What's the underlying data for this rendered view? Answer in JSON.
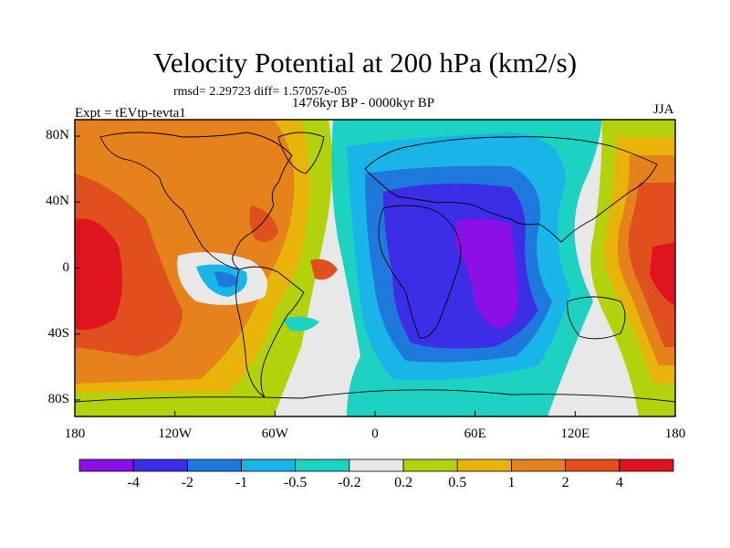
{
  "title": "Velocity Potential at 200 hPa (km2/s)",
  "stats_line": "rmsd= 2.29723 diff= 1.57057e-05",
  "period_line": "1476kyr BP - 0000kyr BP",
  "experiment_label": "Expt = tEVtp-tevta1",
  "season_label": "JJA",
  "chart_data": {
    "type": "heatmap",
    "title": "Velocity Potential at 200 hPa (km2/s)",
    "projection": "cylindrical equidistant",
    "lon_range": [
      -180,
      180
    ],
    "lat_range": [
      -90,
      90
    ],
    "x_ticks": [
      {
        "lon": -180,
        "label": "180"
      },
      {
        "lon": -120,
        "label": "120W"
      },
      {
        "lon": -60,
        "label": "60W"
      },
      {
        "lon": 0,
        "label": "0"
      },
      {
        "lon": 60,
        "label": "60E"
      },
      {
        "lon": 120,
        "label": "120E"
      },
      {
        "lon": 180,
        "label": "180"
      }
    ],
    "y_ticks": [
      {
        "lat": 80,
        "label": "80N"
      },
      {
        "lat": 40,
        "label": "40N"
      },
      {
        "lat": 0,
        "label": "0"
      },
      {
        "lat": -40,
        "label": "40S"
      },
      {
        "lat": -80,
        "label": "80S"
      }
    ],
    "contour_levels": [
      -4,
      -2,
      -1,
      -0.5,
      -0.2,
      0.2,
      0.5,
      1,
      2,
      4
    ],
    "colorbar_labels": [
      "-4",
      "-2",
      "-1",
      "-0.5",
      "-0.2",
      "0.2",
      "0.5",
      "1",
      "2",
      "4"
    ],
    "colors": [
      "#8a10e6",
      "#3c2ee6",
      "#1f78dc",
      "#19b4e8",
      "#1ed2c2",
      "#e8e8e8",
      "#b4d20c",
      "#e8b40a",
      "#e6821c",
      "#e0501e",
      "#e0141e"
    ],
    "features": [
      {
        "name": "western hemisphere positive anomaly",
        "center": [
          -160,
          0
        ],
        "level": 4
      },
      {
        "name": "pacific positive anomaly",
        "center": [
          170,
          5
        ],
        "level": 4
      },
      {
        "name": "africa / indian ocean negative anomaly",
        "center": [
          70,
          10
        ],
        "level": -4
      },
      {
        "name": "tropical atlantic negative anomaly",
        "center": [
          -90,
          -5
        ],
        "level": -1
      }
    ]
  }
}
